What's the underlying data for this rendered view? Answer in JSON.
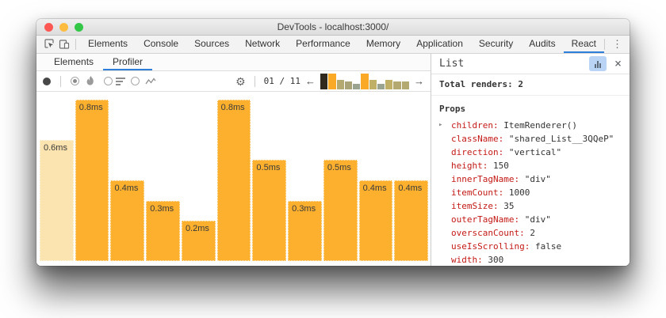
{
  "window": {
    "title": "DevTools - localhost:3000/"
  },
  "colors": {
    "accent_blue": "#2e7fd9",
    "bar_orange": "#fcb02e",
    "bar_selected_pale": "#fce4b0",
    "prop_key_red": "#c41a16",
    "traffic_red": "#fc5753",
    "traffic_yellow": "#fdbc40",
    "traffic_green": "#33c748"
  },
  "icons": {
    "gear": "⚙",
    "kebab": "⋮",
    "close": "×",
    "prev": "←",
    "next": "→",
    "expand": "▸"
  },
  "devtools_tabs": {
    "active": "React",
    "items": [
      "Elements",
      "Console",
      "Sources",
      "Network",
      "Performance",
      "Memory",
      "Application",
      "Security",
      "Audits",
      "React"
    ]
  },
  "react_tabs": {
    "active": "Profiler",
    "items": [
      "Elements",
      "Profiler"
    ]
  },
  "snapshot_selector": {
    "position_label": "01 / 11",
    "bars": [
      {
        "height_pct": 100,
        "color": "#2f281d",
        "selected": true
      },
      {
        "height_pct": 100,
        "color": "#faa926"
      },
      {
        "height_pct": 58,
        "color": "#b4aa71"
      },
      {
        "height_pct": 46,
        "color": "#aaa377"
      },
      {
        "height_pct": 33,
        "color": "#9aa38f"
      },
      {
        "height_pct": 97,
        "color": "#faa926"
      },
      {
        "height_pct": 58,
        "color": "#c0b065"
      },
      {
        "height_pct": 35,
        "color": "#9aa38f"
      },
      {
        "height_pct": 58,
        "color": "#c0b065"
      },
      {
        "height_pct": 49,
        "color": "#b4aa71"
      },
      {
        "height_pct": 49,
        "color": "#b4aa71"
      }
    ]
  },
  "chart_data": {
    "type": "bar",
    "unit": "ms",
    "values": [
      0.6,
      0.8,
      0.4,
      0.3,
      0.2,
      0.8,
      0.5,
      0.3,
      0.5,
      0.4,
      0.4
    ],
    "labels": [
      "0.6ms",
      "0.8ms",
      "0.4ms",
      "0.3ms",
      "0.2ms",
      "0.8ms",
      "0.5ms",
      "0.3ms",
      "0.5ms",
      "0.4ms",
      "0.4ms"
    ],
    "max_value": 0.8,
    "selected_index": 0,
    "bar_color": "#fcb02e",
    "selected_bar_color": "#fce4b0"
  },
  "details_panel": {
    "title": "List",
    "total_renders_label": "Total renders:",
    "total_renders_value": "2",
    "props_label": "Props",
    "props": [
      {
        "key": "children",
        "value": "ItemRenderer()",
        "expandable": true
      },
      {
        "key": "className",
        "value": "\"shared_List__3QQeP\""
      },
      {
        "key": "direction",
        "value": "\"vertical\""
      },
      {
        "key": "height",
        "value": "150"
      },
      {
        "key": "innerTagName",
        "value": "\"div\""
      },
      {
        "key": "itemCount",
        "value": "1000"
      },
      {
        "key": "itemSize",
        "value": "35"
      },
      {
        "key": "outerTagName",
        "value": "\"div\""
      },
      {
        "key": "overscanCount",
        "value": "2"
      },
      {
        "key": "useIsScrolling",
        "value": "false"
      },
      {
        "key": "width",
        "value": "300"
      }
    ]
  }
}
